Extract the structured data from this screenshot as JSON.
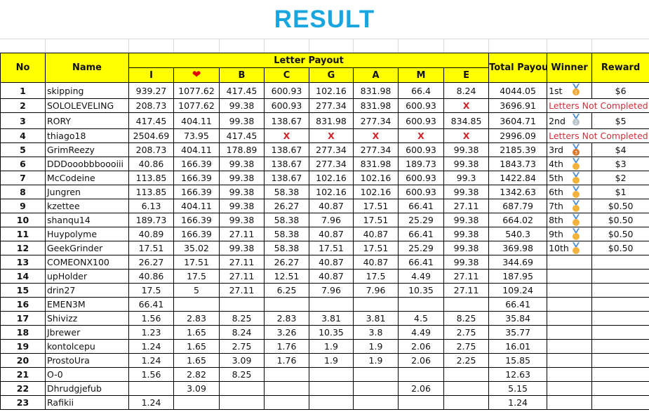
{
  "title": "RESULT",
  "headers": {
    "no": "No",
    "name": "Name",
    "letter_payout": "Letter Payout",
    "letters": [
      "I",
      "heart-icon",
      "B",
      "C",
      "G",
      "A",
      "M",
      "E"
    ],
    "total": "Total Payout",
    "winner": "Winner",
    "reward": "Reward"
  },
  "colors": {
    "header_bg": "#ffff00",
    "title": "#19a6df",
    "x_mark": "#d0202a",
    "heart": "#e00000"
  },
  "not_completed_label": "Letters Not Completed",
  "rows": [
    {
      "no": "1",
      "name": "skipping",
      "letters": [
        "939.27",
        "1077.62",
        "417.45",
        "600.93",
        "102.16",
        "831.98",
        "66.4",
        "8.24"
      ],
      "total": "4044.05",
      "winner": "1st",
      "medal": "gold-1",
      "reward": "$6"
    },
    {
      "no": "2",
      "name": "SOLOLEVELING",
      "letters": [
        "208.73",
        "1077.62",
        "99.38",
        "600.93",
        "277.34",
        "831.98",
        "600.93",
        "X"
      ],
      "total": "3696.91",
      "status": "Letters Not Completed"
    },
    {
      "no": "3",
      "name": "RORY",
      "letters": [
        "417.45",
        "404.11",
        "99.38",
        "138.67",
        "831.98",
        "277.34",
        "600.93",
        "834.85"
      ],
      "total": "3604.71",
      "winner": "2nd",
      "medal": "silver-2",
      "reward": "$5"
    },
    {
      "no": "4",
      "name": "thiago18",
      "letters": [
        "2504.69",
        "73.95",
        "417.45",
        "X",
        "X",
        "X",
        "X",
        "X"
      ],
      "total": "2996.09",
      "status": "Letters Not Completed"
    },
    {
      "no": "5",
      "name": "GrimReezy",
      "letters": [
        "208.73",
        "404.11",
        "178.89",
        "138.67",
        "277.34",
        "277.34",
        "600.93",
        "99.38"
      ],
      "total": "2185.39",
      "winner": "3rd",
      "medal": "bronze-3",
      "reward": "$4"
    },
    {
      "no": "6",
      "name": "DDDooobbboooiii",
      "letters": [
        "40.86",
        "166.39",
        "99.38",
        "138.67",
        "277.34",
        "831.98",
        "189.73",
        "99.38"
      ],
      "total": "1843.73",
      "winner": "4th",
      "medal": "gold",
      "reward": "$3"
    },
    {
      "no": "7",
      "name": "McCodeine",
      "letters": [
        "113.85",
        "166.39",
        "99.38",
        "138.67",
        "102.16",
        "102.16",
        "600.93",
        "99.3"
      ],
      "total": "1422.84",
      "winner": "5th",
      "medal": "gold",
      "reward": "$2"
    },
    {
      "no": "8",
      "name": "Jungren",
      "letters": [
        "113.85",
        "166.39",
        "99.38",
        "58.38",
        "102.16",
        "102.16",
        "600.93",
        "99.38"
      ],
      "total": "1342.63",
      "winner": "6th",
      "medal": "gold",
      "reward": "$1"
    },
    {
      "no": "9",
      "name": "kzettee",
      "letters": [
        "6.13",
        "404.11",
        "99.38",
        "26.27",
        "40.87",
        "17.51",
        "66.41",
        "27.11"
      ],
      "total": "687.79",
      "winner": "7th",
      "medal": "gold",
      "reward": "$0.50"
    },
    {
      "no": "10",
      "name": "shanqu14",
      "letters": [
        "189.73",
        "166.39",
        "99.38",
        "58.38",
        "7.96",
        "17.51",
        "25.29",
        "99.38"
      ],
      "total": "664.02",
      "winner": "8th",
      "medal": "gold",
      "reward": "$0.50"
    },
    {
      "no": "11",
      "name": "Huypolyme",
      "letters": [
        "40.89",
        "166.39",
        "27.11",
        "58.38",
        "40.87",
        "40.87",
        "66.41",
        "99.38"
      ],
      "total": "540.3",
      "winner": "9th",
      "medal": "gold",
      "reward": "$0.50"
    },
    {
      "no": "12",
      "name": "GeekGrinder",
      "letters": [
        "17.51",
        "35.02",
        "99.38",
        "58.38",
        "17.51",
        "17.51",
        "25.29",
        "99.38"
      ],
      "total": "369.98",
      "winner": "10th",
      "medal": "gold",
      "reward": "$0.50"
    },
    {
      "no": "13",
      "name": "COMEONX100",
      "letters": [
        "26.27",
        "17.51",
        "27.11",
        "26.27",
        "40.87",
        "40.87",
        "66.41",
        "99.38"
      ],
      "total": "344.69"
    },
    {
      "no": "14",
      "name": "upHolder",
      "letters": [
        "40.86",
        "17.5",
        "27.11",
        "12.51",
        "40.87",
        "17.5",
        "4.49",
        "27.11"
      ],
      "total": "187.95"
    },
    {
      "no": "15",
      "name": "drin27",
      "letters": [
        "17.5",
        "5",
        "27.11",
        "6.25",
        "7.96",
        "7.96",
        "10.35",
        "27.11"
      ],
      "total": "109.24"
    },
    {
      "no": "16",
      "name": "EMEN3M",
      "letters": [
        "66.41",
        "",
        "",
        "",
        "",
        "",
        "",
        ""
      ],
      "total": "66.41"
    },
    {
      "no": "17",
      "name": "Shivizz",
      "letters": [
        "1.56",
        "2.83",
        "8.25",
        "2.83",
        "3.81",
        "3.81",
        "4.5",
        "8.25"
      ],
      "total": "35.84"
    },
    {
      "no": "18",
      "name": "Jbrewer",
      "letters": [
        "1.23",
        "1.65",
        "8.24",
        "3.26",
        "10.35",
        "3.8",
        "4.49",
        "2.75"
      ],
      "total": "35.77"
    },
    {
      "no": "19",
      "name": "kontolcepu",
      "letters": [
        "1.24",
        "1.65",
        "2.75",
        "1.76",
        "1.9",
        "1.9",
        "2.06",
        "2.75"
      ],
      "total": "16.01"
    },
    {
      "no": "20",
      "name": "ProstoUra",
      "letters": [
        "1.24",
        "1.65",
        "3.09",
        "1.76",
        "1.9",
        "1.9",
        "2.06",
        "2.25"
      ],
      "total": "15.85"
    },
    {
      "no": "21",
      "name": "O-0",
      "letters": [
        "1.56",
        "2.82",
        "8.25",
        "",
        "",
        "",
        "",
        ""
      ],
      "total": "12.63"
    },
    {
      "no": "22",
      "name": "Dhrudgjefub",
      "letters": [
        "",
        "3.09",
        "",
        "",
        "",
        "",
        "2.06",
        ""
      ],
      "total": "5.15"
    },
    {
      "no": "23",
      "name": "Rafikii",
      "letters": [
        "1.24",
        "",
        "",
        "",
        "",
        "",
        "",
        ""
      ],
      "total": "1.24"
    }
  ]
}
